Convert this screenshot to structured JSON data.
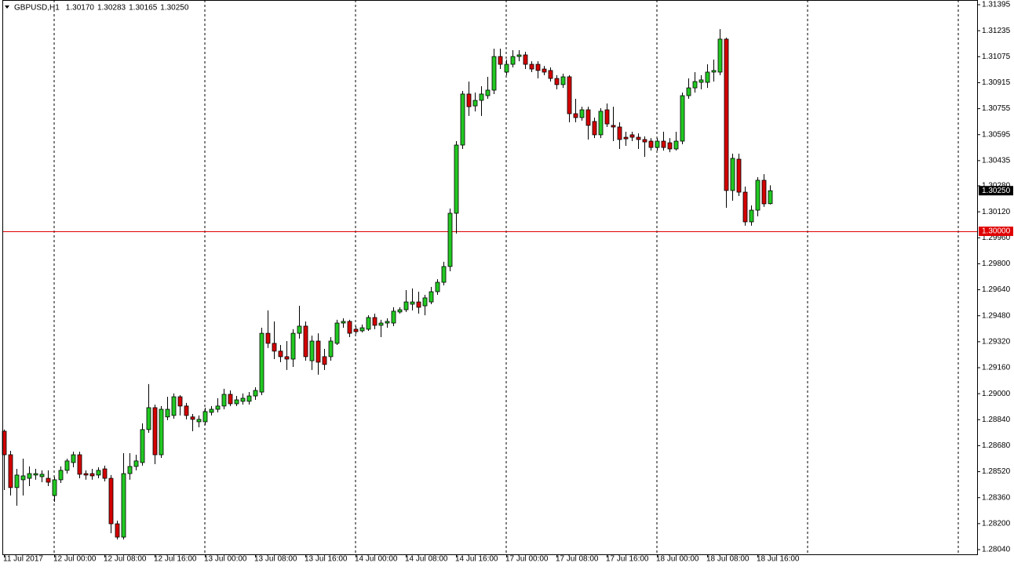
{
  "chart_data": {
    "type": "candlestick",
    "title": "GBPUSD,H1",
    "title_values": [
      "1.30170",
      "1.30283",
      "1.30165",
      "1.30250"
    ],
    "categories": [
      "11 Jul 2017",
      null,
      null,
      null,
      null,
      null,
      null,
      null,
      "12 Jul 00:00",
      null,
      null,
      null,
      null,
      null,
      null,
      null,
      "12 Jul 08:00",
      null,
      null,
      null,
      null,
      null,
      null,
      null,
      "12 Jul 16:00",
      null,
      null,
      null,
      null,
      null,
      null,
      null,
      "13 Jul 00:00",
      null,
      null,
      null,
      null,
      null,
      null,
      null,
      "13 Jul 08:00",
      null,
      null,
      null,
      null,
      null,
      null,
      null,
      "13 Jul 16:00",
      null,
      null,
      null,
      null,
      null,
      null,
      null,
      "14 Jul 00:00",
      null,
      null,
      null,
      null,
      null,
      null,
      null,
      "14 Jul 08:00",
      null,
      null,
      null,
      null,
      null,
      null,
      null,
      "14 Jul 16:00",
      null,
      null,
      null,
      null,
      null,
      null,
      null,
      "17 Jul 00:00",
      null,
      null,
      null,
      null,
      null,
      null,
      null,
      "17 Jul 08:00",
      null,
      null,
      null,
      null,
      null,
      null,
      null,
      "17 Jul 16:00",
      null,
      null,
      null,
      null,
      null,
      null,
      null,
      "18 Jul 00:00",
      null,
      null,
      null,
      null,
      null,
      null,
      null,
      "18 Jul 08:00",
      null,
      null,
      null,
      null,
      null,
      null,
      null,
      "18 Jul 16:00",
      null,
      null
    ],
    "open": [
      1.28769,
      1.28624,
      1.28422,
      1.2847,
      1.28479,
      1.28499,
      1.28489,
      1.28479,
      1.28373,
      1.2847,
      1.28528,
      1.28576,
      1.28624,
      1.28508,
      1.28508,
      1.28499,
      1.28537,
      1.28479,
      1.28199,
      1.28117,
      1.28508,
      1.28552,
      1.28576,
      1.28779,
      1.28914,
      1.28624,
      1.28857,
      1.28866,
      1.28981,
      1.28924,
      1.28857,
      1.28827,
      1.28827,
      1.28885,
      1.28904,
      1.28924,
      1.28996,
      1.28938,
      1.28953,
      1.28953,
      1.28986,
      1.2901,
      1.29372,
      1.2931,
      1.29262,
      1.29228,
      1.29213,
      1.29372,
      1.29416,
      1.29203,
      1.29324,
      1.29228,
      1.29228,
      1.2931,
      1.29435,
      1.29445,
      1.29397,
      1.29387,
      1.29397,
      1.29469,
      1.29421,
      1.29435,
      1.29435,
      1.29503,
      1.29517,
      1.29551,
      1.29565,
      1.29541,
      1.29565,
      1.29628,
      1.29686,
      1.29783,
      1.30111,
      1.30531,
      1.30845,
      1.30772,
      1.30806,
      1.30835,
      1.30869,
      1.31076,
      1.3098,
      1.31028,
      1.31076,
      1.31086,
      1.31028,
      1.31028,
      1.30999,
      1.3099,
      1.30941,
      1.30903,
      1.30951,
      1.30724,
      1.307,
      1.30748,
      1.30676,
      1.30594,
      1.30748,
      1.30652,
      1.30642,
      1.30579,
      1.30594,
      1.30579,
      1.30565,
      1.30555,
      1.30516,
      1.30555,
      1.30545,
      1.30507,
      1.30555,
      1.30835,
      1.30883,
      1.30917,
      1.30917,
      1.3098,
      1.3098,
      1.31183,
      1.30251,
      1.30444,
      1.30241,
      1.30058,
      1.3013,
      1.30314,
      1.3017
    ],
    "high": [
      1.28779,
      1.28648,
      1.28537,
      1.286,
      1.28552,
      1.28537,
      1.28528,
      1.28528,
      1.28489,
      1.28552,
      1.286,
      1.28643,
      1.28643,
      1.28528,
      1.28537,
      1.28547,
      1.28557,
      1.28499,
      1.28218,
      1.28634,
      1.28634,
      1.28624,
      1.28817,
      1.29059,
      1.28933,
      1.28924,
      1.28981,
      1.29001,
      1.28991,
      1.28943,
      1.28875,
      1.28866,
      1.28914,
      1.28924,
      1.28972,
      1.2903,
      1.2902,
      1.28986,
      1.29001,
      1.2901,
      1.2904,
      1.29406,
      1.29513,
      1.29445,
      1.293,
      1.29324,
      1.29397,
      1.29541,
      1.29445,
      1.29358,
      1.29372,
      1.29276,
      1.29348,
      1.29455,
      1.29464,
      1.29455,
      1.29416,
      1.29426,
      1.29483,
      1.29493,
      1.29455,
      1.29464,
      1.29532,
      1.29532,
      1.29638,
      1.29648,
      1.29628,
      1.29609,
      1.29657,
      1.29705,
      1.29812,
      1.3014,
      1.30555,
      1.30864,
      1.30922,
      1.30854,
      1.30893,
      1.30951,
      1.31124,
      1.31124,
      1.31057,
      1.31115,
      1.31115,
      1.31105,
      1.31047,
      1.31047,
      1.31018,
      1.31009,
      1.30961,
      1.3097,
      1.30961,
      1.30816,
      1.30767,
      1.30767,
      1.307,
      1.30758,
      1.30787,
      1.30767,
      1.30671,
      1.30613,
      1.30613,
      1.30603,
      1.30584,
      1.30574,
      1.30574,
      1.30613,
      1.30574,
      1.30613,
      1.30854,
      1.30941,
      1.3098,
      1.30961,
      1.31028,
      1.31057,
      1.31245,
      1.31192,
      1.30478,
      1.30478,
      1.30275,
      1.30159,
      1.30333,
      1.30352,
      1.30283
    ],
    "low": [
      1.28407,
      1.28373,
      1.2831,
      1.28373,
      1.28431,
      1.2847,
      1.28455,
      1.28431,
      1.28334,
      1.2845,
      1.28508,
      1.28547,
      1.28479,
      1.2847,
      1.2847,
      1.28479,
      1.2846,
      1.28141,
      1.28103,
      1.28103,
      1.2847,
      1.28528,
      1.28557,
      1.28759,
      1.28566,
      1.28605,
      1.28837,
      1.28846,
      1.28866,
      1.28842,
      1.28769,
      1.28793,
      1.28808,
      1.28866,
      1.28885,
      1.28904,
      1.28924,
      1.28924,
      1.28933,
      1.28933,
      1.28962,
      1.28991,
      1.29281,
      1.29213,
      1.29194,
      1.29146,
      1.29165,
      1.29339,
      1.29203,
      1.29146,
      1.29117,
      1.29146,
      1.29203,
      1.293,
      1.29406,
      1.29348,
      1.29368,
      1.29377,
      1.29387,
      1.29397,
      1.29348,
      1.29406,
      1.29416,
      1.29493,
      1.29503,
      1.29513,
      1.29493,
      1.29483,
      1.29551,
      1.29609,
      1.29667,
      1.29754,
      1.29986,
      1.30507,
      1.3071,
      1.30738,
      1.3071,
      1.30816,
      1.30845,
      1.30999,
      1.30961,
      1.31009,
      1.31047,
      1.30999,
      1.3098,
      1.30941,
      1.30961,
      1.30922,
      1.30874,
      1.30883,
      1.30671,
      1.30671,
      1.30681,
      1.30565,
      1.30574,
      1.30574,
      1.30642,
      1.30555,
      1.30507,
      1.30526,
      1.30555,
      1.30507,
      1.30458,
      1.30497,
      1.30497,
      1.30497,
      1.30487,
      1.30497,
      1.30536,
      1.30816,
      1.30854,
      1.30874,
      1.30883,
      1.30922,
      1.30961,
      1.30145,
      1.30188,
      1.30217,
      1.30034,
      1.30034,
      1.30092,
      1.3015,
      1.30165
    ],
    "close": [
      1.28624,
      1.28422,
      1.28499,
      1.28494,
      1.28508,
      1.28508,
      1.28504,
      1.28455,
      1.2847,
      1.28528,
      1.28586,
      1.28624,
      1.28504,
      1.28499,
      1.28494,
      1.28528,
      1.28479,
      1.28199,
      1.28117,
      1.28508,
      1.28552,
      1.28586,
      1.28779,
      1.28914,
      1.28624,
      1.28904,
      1.28904,
      1.28981,
      1.28924,
      1.28866,
      1.28842,
      1.28842,
      1.2889,
      1.28904,
      1.28924,
      1.28996,
      1.28938,
      1.28962,
      1.28972,
      1.28986,
      1.2902,
      1.29372,
      1.2931,
      1.29262,
      1.29228,
      1.29213,
      1.29372,
      1.29416,
      1.29228,
      1.29324,
      1.29194,
      1.2918,
      1.29324,
      1.29435,
      1.29445,
      1.29372,
      1.29382,
      1.29406,
      1.29469,
      1.29421,
      1.29435,
      1.29445,
      1.29508,
      1.29517,
      1.29565,
      1.29565,
      1.29532,
      1.2959,
      1.29628,
      1.29686,
      1.29783,
      1.30111,
      1.30531,
      1.30845,
      1.30767,
      1.30806,
      1.30845,
      1.30869,
      1.31076,
      1.31028,
      1.31028,
      1.31076,
      1.31086,
      1.31028,
      1.30999,
      1.3099,
      1.3098,
      1.30941,
      1.30903,
      1.30951,
      1.30724,
      1.307,
      1.30748,
      1.30652,
      1.30594,
      1.30739,
      1.30661,
      1.30642,
      1.30565,
      1.30569,
      1.30579,
      1.30565,
      1.3055,
      1.30516,
      1.30555,
      1.30516,
      1.30507,
      1.30555,
      1.30835,
      1.30883,
      1.30922,
      1.30932,
      1.3098,
      1.3099,
      1.31183,
      1.30251,
      1.30449,
      1.30241,
      1.30058,
      1.3013,
      1.30314,
      1.30169,
      1.3025
    ],
    "up_color": "#22c822",
    "down_color": "#d40000",
    "ylim": [
      1.28011,
      1.31424
    ],
    "yticks": [
      1.31395,
      1.31235,
      1.31075,
      1.30915,
      1.30755,
      1.30595,
      1.30435,
      {
        "value": 1.3028,
        "label": "1.30280"
      },
      {
        "value": 1.3012,
        "label": "1.30120"
      },
      {
        "value": 1.2996,
        "label": "1.29960"
      },
      {
        "value": 1.298,
        "label": "1.29800"
      },
      {
        "value": 1.2964,
        "label": "1.29640"
      },
      {
        "value": 1.2948,
        "label": "1.29480"
      },
      {
        "value": 1.2932,
        "label": "1.29320"
      },
      {
        "value": 1.2916,
        "label": "1.29160"
      },
      {
        "value": 1.29,
        "label": "1.29000"
      },
      {
        "value": 1.2884,
        "label": "1.28840"
      },
      {
        "value": 1.2868,
        "label": "1.28680"
      },
      {
        "value": 1.2852,
        "label": "1.28520"
      },
      {
        "value": 1.2836,
        "label": "1.28360"
      },
      {
        "value": 1.282,
        "label": "1.28200"
      },
      {
        "value": 1.2804,
        "label": "1.28040"
      }
    ],
    "hline": {
      "value": 1.3,
      "label": "1.30000",
      "color": "#e00000"
    },
    "current_price": {
      "value": 1.3025,
      "label": "1.30250"
    },
    "grid": false,
    "period_separators": true
  }
}
